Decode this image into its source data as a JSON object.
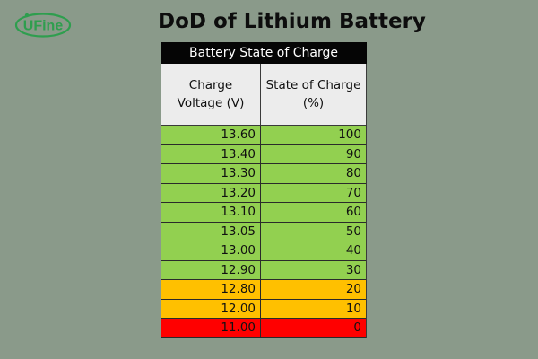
{
  "logo": {
    "text": "UFine",
    "color": "#2e9e4e"
  },
  "page_title": "DoD of Lithium Battery",
  "table": {
    "title": "Battery State of Charge",
    "headers": [
      "Charge\nVoltage (V)",
      "State of Charge\n(%)"
    ],
    "level_colors": {
      "green": "#92d050",
      "orange": "#ffc000",
      "red": "#ff0000"
    },
    "rows": [
      {
        "voltage": "13.60",
        "soc": "100",
        "level": "green"
      },
      {
        "voltage": "13.40",
        "soc": "90",
        "level": "green"
      },
      {
        "voltage": "13.30",
        "soc": "80",
        "level": "green"
      },
      {
        "voltage": "13.20",
        "soc": "70",
        "level": "green"
      },
      {
        "voltage": "13.10",
        "soc": "60",
        "level": "green"
      },
      {
        "voltage": "13.05",
        "soc": "50",
        "level": "green"
      },
      {
        "voltage": "13.00",
        "soc": "40",
        "level": "green"
      },
      {
        "voltage": "12.90",
        "soc": "30",
        "level": "green"
      },
      {
        "voltage": "12.80",
        "soc": "20",
        "level": "orange"
      },
      {
        "voltage": "12.00",
        "soc": "10",
        "level": "orange"
      },
      {
        "voltage": "11.00",
        "soc": "0",
        "level": "red"
      }
    ]
  }
}
